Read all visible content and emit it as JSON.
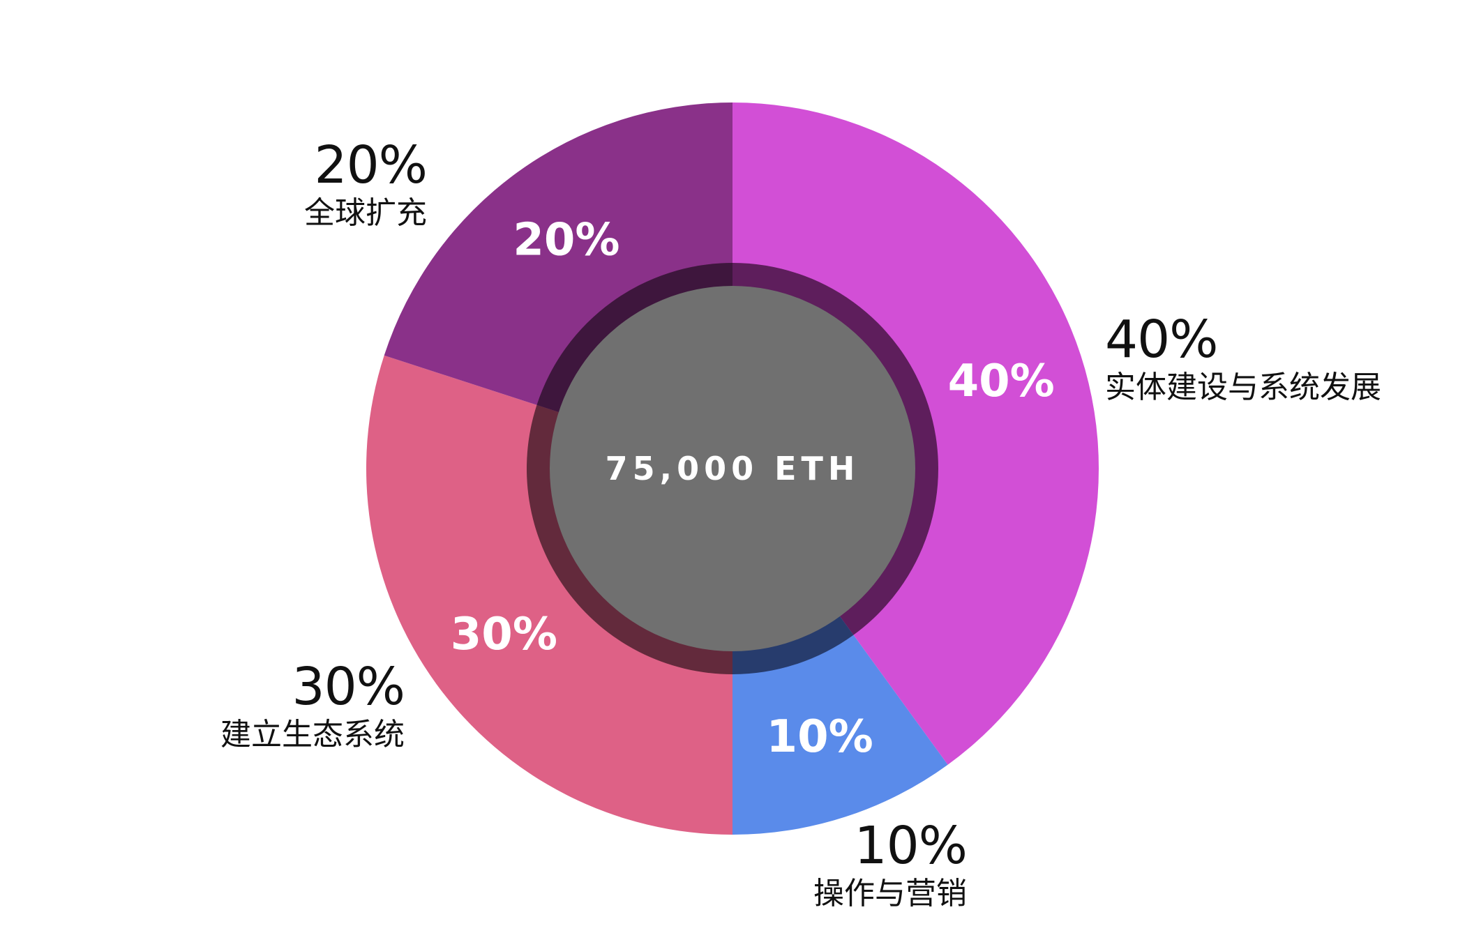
{
  "chart_data": {
    "type": "pie",
    "center_label": "75,000 ETH",
    "categories": [
      "实体建设与系统发展",
      "操作与营销",
      "建立生态系统",
      "全球扩充"
    ],
    "values": [
      40,
      10,
      30,
      20
    ],
    "slice_labels": [
      "40%",
      "10%",
      "30%",
      "20%"
    ],
    "legend": [
      {
        "pct": "40%",
        "name": "实体建设与系统发展"
      },
      {
        "pct": "10%",
        "name": "操作与营销"
      },
      {
        "pct": "30%",
        "name": "建立生态系统"
      },
      {
        "pct": "20%",
        "name": "全球扩充"
      }
    ],
    "colors": [
      "#d24fd6",
      "#5a8bea",
      "#de6186",
      "#8a3189"
    ],
    "ring_colors": [
      "#5e1e5c",
      "#273c6d",
      "#632a3c",
      "#3e163d"
    ],
    "center_color": "#707070"
  }
}
